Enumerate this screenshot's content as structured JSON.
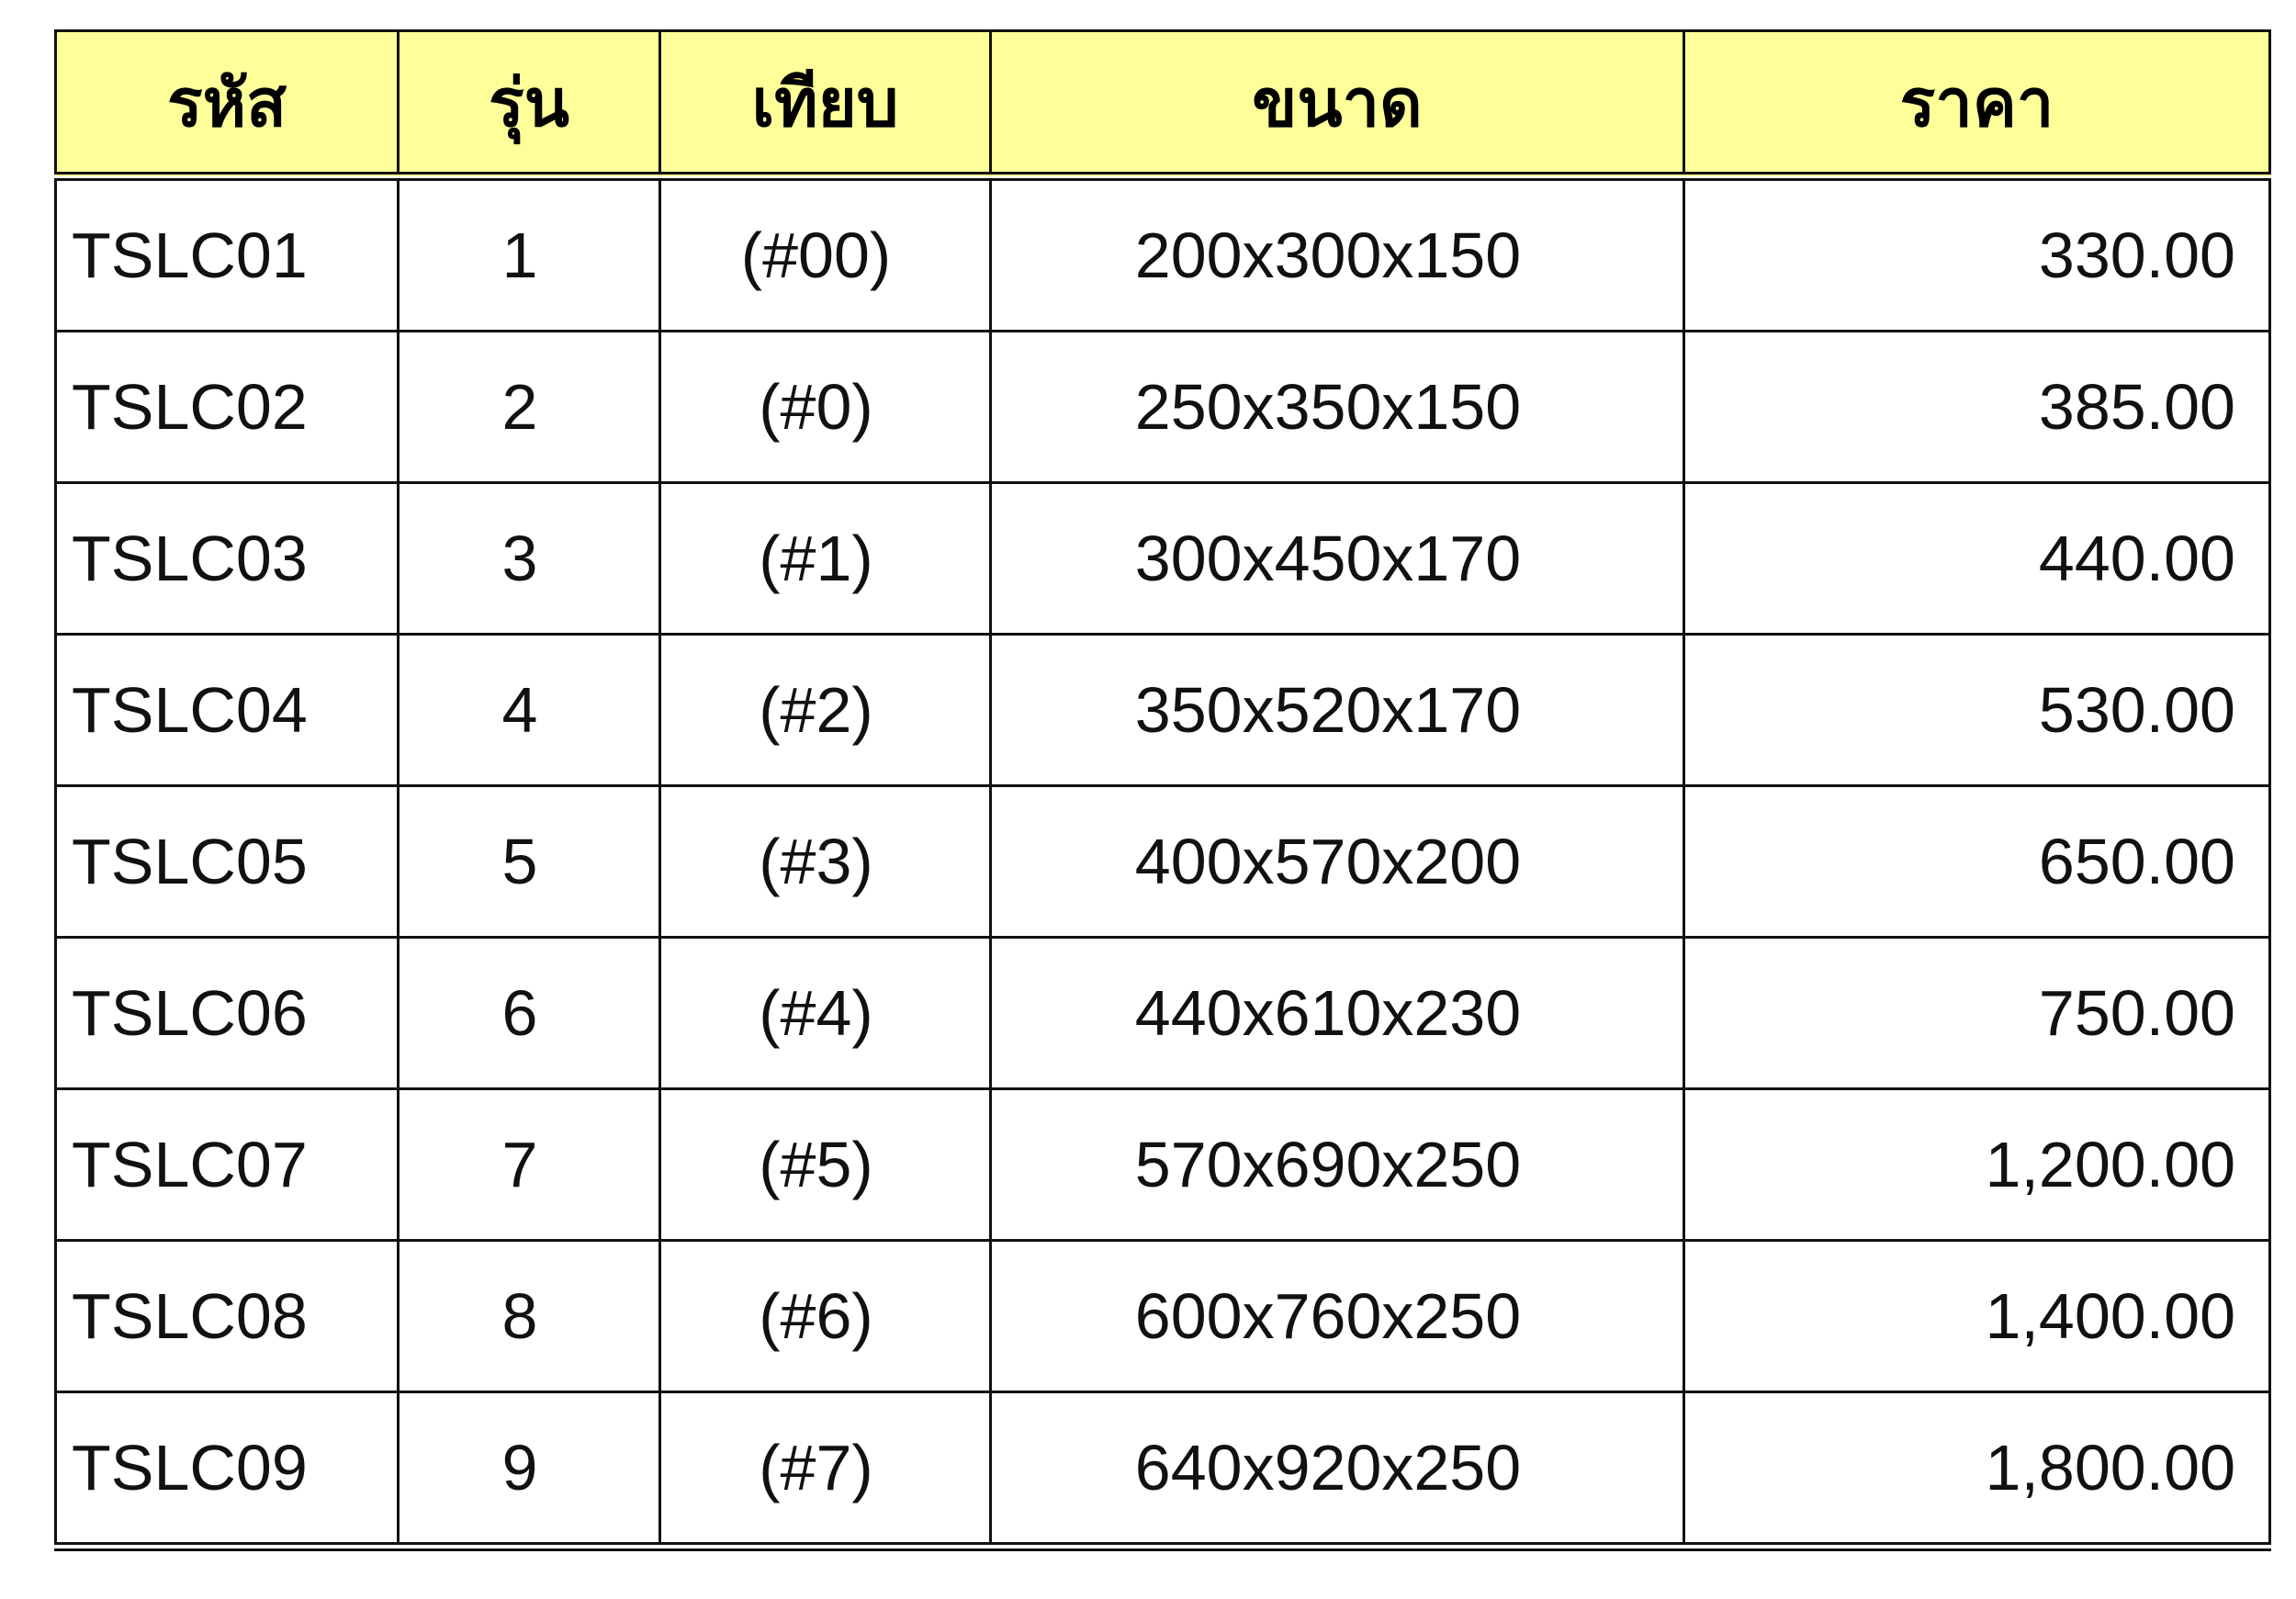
{
  "table": {
    "header_color": "#ffff99",
    "headers": [
      "รหัส",
      "รุ่น",
      "เทียบ",
      "ขนาด",
      "ราคา"
    ],
    "rows": [
      [
        "TSLC01",
        "1",
        "(#00)",
        "200x300x150",
        "330.00"
      ],
      [
        "TSLC02",
        "2",
        "(#0)",
        "250x350x150",
        "385.00"
      ],
      [
        "TSLC03",
        "3",
        "(#1)",
        "300x450x170",
        "440.00"
      ],
      [
        "TSLC04",
        "4",
        "(#2)",
        "350x520x170",
        "530.00"
      ],
      [
        "TSLC05",
        "5",
        "(#3)",
        "400x570x200",
        "650.00"
      ],
      [
        "TSLC06",
        "6",
        "(#4)",
        "440x610x230",
        "750.00"
      ],
      [
        "TSLC07",
        "7",
        "(#5)",
        "570x690x250",
        "1,200.00"
      ],
      [
        "TSLC08",
        "8",
        "(#6)",
        "600x760x250",
        "1,400.00"
      ],
      [
        "TSLC09",
        "9",
        "(#7)",
        "640x920x250",
        "1,800.00"
      ]
    ]
  }
}
